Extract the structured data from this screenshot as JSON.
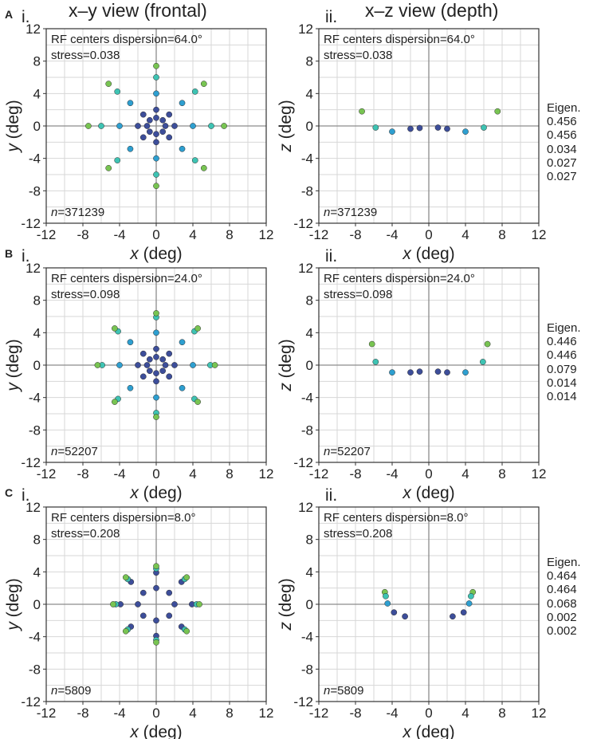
{
  "column_titles": {
    "xy": "x–y view (frontal)",
    "xz": "x–z view (depth)"
  },
  "chart_data": [
    {
      "id": "A-i",
      "panel": "A",
      "sub": "i.",
      "type": "scatter",
      "annotation": "RF centers dispersion=64.0°",
      "stress": "stress=0.038",
      "n": "n=371239",
      "xlabel": "x (deg)",
      "ylabel": "y (deg)",
      "xlim": [
        -12,
        12
      ],
      "ylim": [
        -12,
        12
      ],
      "ticks": [
        -12,
        -8,
        -4,
        0,
        4,
        8,
        12
      ],
      "points": [
        [
          0,
          1,
          "d"
        ],
        [
          0.71,
          0.71,
          "d"
        ],
        [
          1,
          0,
          "d"
        ],
        [
          0.71,
          -0.71,
          "d"
        ],
        [
          0,
          -1,
          "d"
        ],
        [
          -0.71,
          -0.71,
          "d"
        ],
        [
          -1,
          0,
          "d"
        ],
        [
          -0.71,
          0.71,
          "d"
        ],
        [
          0,
          2,
          "d"
        ],
        [
          1.41,
          1.41,
          "d"
        ],
        [
          2,
          0,
          "d"
        ],
        [
          1.41,
          -1.41,
          "d"
        ],
        [
          0,
          -2,
          "d"
        ],
        [
          -1.41,
          -1.41,
          "d"
        ],
        [
          -2,
          0,
          "d"
        ],
        [
          -1.41,
          1.41,
          "d"
        ],
        [
          0,
          4,
          "c"
        ],
        [
          2.83,
          2.83,
          "c"
        ],
        [
          4,
          0,
          "c"
        ],
        [
          2.83,
          -2.83,
          "c"
        ],
        [
          0,
          -4,
          "c"
        ],
        [
          -2.83,
          -2.83,
          "c"
        ],
        [
          -4,
          0,
          "c"
        ],
        [
          -2.83,
          2.83,
          "c"
        ],
        [
          0,
          6,
          "t"
        ],
        [
          4.24,
          4.24,
          "t"
        ],
        [
          6,
          0,
          "t"
        ],
        [
          4.24,
          -4.24,
          "t"
        ],
        [
          0,
          -6,
          "t"
        ],
        [
          -4.24,
          -4.24,
          "t"
        ],
        [
          -6,
          0,
          "t"
        ],
        [
          -4.24,
          4.24,
          "t"
        ],
        [
          0,
          7.4,
          "g"
        ],
        [
          5.2,
          5.2,
          "g"
        ],
        [
          7.4,
          0,
          "g"
        ],
        [
          5.2,
          -5.2,
          "g"
        ],
        [
          0,
          -7.4,
          "g"
        ],
        [
          -5.2,
          -5.2,
          "g"
        ],
        [
          -7.4,
          0,
          "g"
        ],
        [
          -5.2,
          5.2,
          "g"
        ]
      ]
    },
    {
      "id": "A-ii",
      "panel": "A",
      "sub": "ii.",
      "type": "scatter",
      "annotation": "RF centers dispersion=64.0°",
      "stress": "stress=0.038",
      "n": "n=371239",
      "xlabel": "x (deg)",
      "ylabel": "z (deg)",
      "xlim": [
        -12,
        12
      ],
      "ylim": [
        -12,
        12
      ],
      "ticks": [
        -12,
        -8,
        -4,
        0,
        4,
        8,
        12
      ],
      "eigen": {
        "label": "Eigen.",
        "values": [
          "0.456",
          "0.456",
          "0.034",
          "0.027",
          "0.027"
        ]
      },
      "points": [
        [
          -7.3,
          1.8,
          "g"
        ],
        [
          7.5,
          1.8,
          "g"
        ],
        [
          -5.8,
          -0.2,
          "t"
        ],
        [
          6,
          -0.2,
          "t"
        ],
        [
          -4,
          -0.7,
          "c"
        ],
        [
          4,
          -0.7,
          "c"
        ],
        [
          -2,
          -0.35,
          "d"
        ],
        [
          -1,
          -0.25,
          "d"
        ],
        [
          1,
          -0.2,
          "d"
        ],
        [
          2,
          -0.35,
          "d"
        ]
      ]
    },
    {
      "id": "B-i",
      "panel": "B",
      "sub": "i.",
      "type": "scatter",
      "annotation": "RF centers dispersion=24.0°",
      "stress": "stress=0.098",
      "n": "n=52207",
      "xlabel": "x (deg)",
      "ylabel": "y (deg)",
      "xlim": [
        -12,
        12
      ],
      "ylim": [
        -12,
        12
      ],
      "ticks": [
        -12,
        -8,
        -4,
        0,
        4,
        8,
        12
      ],
      "points": [
        [
          0,
          1,
          "d"
        ],
        [
          0.71,
          0.71,
          "d"
        ],
        [
          1,
          0,
          "d"
        ],
        [
          0.71,
          -0.71,
          "d"
        ],
        [
          0,
          -1,
          "d"
        ],
        [
          -0.71,
          -0.71,
          "d"
        ],
        [
          -1,
          0,
          "d"
        ],
        [
          -0.71,
          0.71,
          "d"
        ],
        [
          0,
          2,
          "d"
        ],
        [
          1.41,
          1.41,
          "d"
        ],
        [
          2,
          0,
          "d"
        ],
        [
          1.41,
          -1.41,
          "d"
        ],
        [
          0,
          -2,
          "d"
        ],
        [
          -1.41,
          -1.41,
          "d"
        ],
        [
          -2,
          0,
          "d"
        ],
        [
          -1.41,
          1.41,
          "d"
        ],
        [
          0,
          4,
          "c"
        ],
        [
          2.83,
          2.83,
          "c"
        ],
        [
          4,
          0,
          "c"
        ],
        [
          2.83,
          -2.83,
          "c"
        ],
        [
          0,
          -4,
          "c"
        ],
        [
          -2.83,
          -2.83,
          "c"
        ],
        [
          -4,
          0,
          "c"
        ],
        [
          -2.83,
          2.83,
          "c"
        ],
        [
          0,
          5.9,
          "t"
        ],
        [
          4.17,
          4.17,
          "t"
        ],
        [
          5.9,
          0,
          "t"
        ],
        [
          4.17,
          -4.17,
          "t"
        ],
        [
          0,
          -5.9,
          "t"
        ],
        [
          -4.17,
          -4.17,
          "t"
        ],
        [
          -5.9,
          0,
          "t"
        ],
        [
          -4.17,
          4.17,
          "t"
        ],
        [
          0,
          6.4,
          "g"
        ],
        [
          4.53,
          4.53,
          "g"
        ],
        [
          6.4,
          0,
          "g"
        ],
        [
          4.53,
          -4.53,
          "g"
        ],
        [
          0,
          -6.4,
          "g"
        ],
        [
          -4.53,
          -4.53,
          "g"
        ],
        [
          -6.4,
          0,
          "g"
        ],
        [
          -4.53,
          4.53,
          "g"
        ]
      ]
    },
    {
      "id": "B-ii",
      "panel": "B",
      "sub": "ii.",
      "type": "scatter",
      "annotation": "RF centers dispersion=24.0°",
      "stress": "stress=0.098",
      "n": "n=52207",
      "xlabel": "x (deg)",
      "ylabel": "z (deg)",
      "xlim": [
        -12,
        12
      ],
      "ylim": [
        -12,
        12
      ],
      "ticks": [
        -12,
        -8,
        -4,
        0,
        4,
        8,
        12
      ],
      "eigen": {
        "label": "Eigen.",
        "values": [
          "0.446",
          "0.446",
          "0.079",
          "0.014",
          "0.014"
        ]
      },
      "points": [
        [
          -6.2,
          2.6,
          "g"
        ],
        [
          6.4,
          2.6,
          "g"
        ],
        [
          -5.8,
          0.4,
          "t"
        ],
        [
          5.9,
          0.4,
          "t"
        ],
        [
          -4,
          -0.9,
          "c"
        ],
        [
          4,
          -0.9,
          "c"
        ],
        [
          -2,
          -0.9,
          "d"
        ],
        [
          -1,
          -0.8,
          "d"
        ],
        [
          1,
          -0.8,
          "d"
        ],
        [
          2,
          -0.9,
          "d"
        ]
      ]
    },
    {
      "id": "C-i",
      "panel": "C",
      "sub": "i.",
      "type": "scatter",
      "annotation": "RF centers dispersion=8.0°",
      "stress": "stress=0.208",
      "n": "n=5809",
      "xlabel": "x (deg)",
      "ylabel": "y (deg)",
      "xlim": [
        -12,
        12
      ],
      "ylim": [
        -12,
        12
      ],
      "ticks": [
        -12,
        -8,
        -4,
        0,
        4,
        8,
        12
      ],
      "points": [
        [
          0,
          2,
          "d"
        ],
        [
          1.41,
          1.41,
          "d"
        ],
        [
          2,
          0,
          "d"
        ],
        [
          1.41,
          -1.41,
          "d"
        ],
        [
          0,
          -2,
          "d"
        ],
        [
          -1.41,
          -1.41,
          "d"
        ],
        [
          -2,
          0,
          "d"
        ],
        [
          -1.41,
          1.41,
          "d"
        ],
        [
          0,
          3.9,
          "d"
        ],
        [
          2.76,
          2.76,
          "d"
        ],
        [
          3.9,
          0,
          "d"
        ],
        [
          2.76,
          -2.76,
          "d"
        ],
        [
          0,
          -3.9,
          "d"
        ],
        [
          -2.76,
          -2.76,
          "d"
        ],
        [
          -3.9,
          0,
          "d"
        ],
        [
          -2.76,
          2.76,
          "d"
        ],
        [
          0,
          4.4,
          "t"
        ],
        [
          3.11,
          3.11,
          "t"
        ],
        [
          4.4,
          0,
          "t"
        ],
        [
          3.11,
          -3.11,
          "t"
        ],
        [
          0,
          -4.4,
          "t"
        ],
        [
          -3.11,
          -3.11,
          "t"
        ],
        [
          -4.4,
          0,
          "t"
        ],
        [
          -3.11,
          3.11,
          "t"
        ],
        [
          0,
          4.7,
          "g"
        ],
        [
          3.32,
          3.32,
          "g"
        ],
        [
          4.7,
          0,
          "g"
        ],
        [
          3.32,
          -3.32,
          "g"
        ],
        [
          0,
          -4.7,
          "g"
        ],
        [
          -3.32,
          -3.32,
          "g"
        ],
        [
          -4.7,
          0,
          "g"
        ],
        [
          -3.32,
          3.32,
          "g"
        ]
      ]
    },
    {
      "id": "C-ii",
      "panel": "C",
      "sub": "ii.",
      "type": "scatter",
      "annotation": "RF centers dispersion=8.0°",
      "stress": "stress=0.208",
      "n": "n=5809",
      "xlabel": "x (deg)",
      "ylabel": "z (deg)",
      "xlim": [
        -12,
        12
      ],
      "ylim": [
        -12,
        12
      ],
      "ticks": [
        -12,
        -8,
        -4,
        0,
        4,
        8,
        12
      ],
      "eigen": {
        "label": "Eigen.",
        "values": [
          "0.464",
          "0.464",
          "0.068",
          "0.002",
          "0.002"
        ]
      },
      "points": [
        [
          -4.8,
          1.5,
          "g"
        ],
        [
          4.8,
          1.5,
          "g"
        ],
        [
          -4.7,
          1,
          "t"
        ],
        [
          4.6,
          1,
          "t"
        ],
        [
          -4.5,
          0.1,
          "c"
        ],
        [
          4.4,
          0.1,
          "c"
        ],
        [
          -3.8,
          -1,
          "d"
        ],
        [
          3.8,
          -1,
          "d"
        ],
        [
          -2.6,
          -1.5,
          "d"
        ],
        [
          2.6,
          -1.5,
          "d"
        ]
      ]
    }
  ],
  "colors": {
    "d": "#3d4e9a",
    "c": "#2e9fd0",
    "t": "#3ec3b3",
    "g": "#78c452"
  }
}
